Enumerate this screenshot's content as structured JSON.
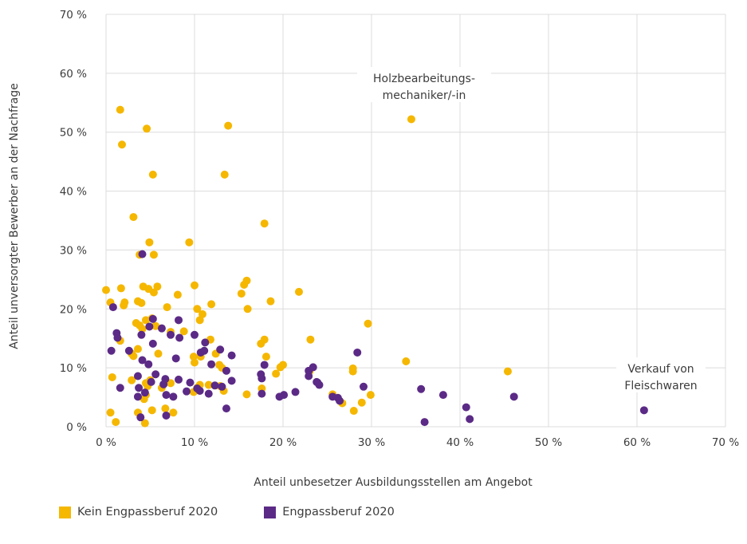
{
  "chart_data": {
    "type": "scatter",
    "xlabel": "Anteil unbesetzer Ausbildungsstellen am Angebot",
    "ylabel": "Anteil unversorgter Bewerber an der Nachfrage",
    "xlim": [
      0,
      70
    ],
    "ylim": [
      0,
      70
    ],
    "x_ticks": [
      "0 %",
      "10 %",
      "20 %",
      "30 %",
      "40 %",
      "50 %",
      "60 %",
      "70 %"
    ],
    "y_ticks": [
      "0 %",
      "10 %",
      "20 %",
      "30 %",
      "40 %",
      "50 %",
      "60 %",
      "70 %"
    ],
    "grid": "vertical and horizontal",
    "legend_position": "bottom-left",
    "series": [
      {
        "name": "Kein Engpassberuf 2020",
        "color": "#F5B700",
        "points": [
          [
            1.6,
            53.8
          ],
          [
            1.8,
            47.9
          ],
          [
            4.6,
            50.6
          ],
          [
            5.3,
            42.8
          ],
          [
            13.8,
            51.1
          ],
          [
            13.4,
            42.8
          ],
          [
            34.5,
            52.2
          ],
          [
            3.1,
            35.6
          ],
          [
            4.9,
            31.3
          ],
          [
            5.4,
            29.2
          ],
          [
            9.4,
            31.3
          ],
          [
            17.9,
            34.5
          ],
          [
            3.8,
            29.2
          ],
          [
            0.0,
            23.2
          ],
          [
            1.7,
            23.5
          ],
          [
            2.1,
            21.1
          ],
          [
            2.0,
            20.6
          ],
          [
            0.5,
            21.1
          ],
          [
            3.6,
            21.3
          ],
          [
            4.0,
            21.0
          ],
          [
            4.2,
            23.8
          ],
          [
            4.8,
            23.4
          ],
          [
            5.4,
            22.8
          ],
          [
            5.8,
            23.8
          ],
          [
            6.9,
            20.3
          ],
          [
            8.1,
            22.4
          ],
          [
            10.0,
            24.0
          ],
          [
            10.3,
            20.0
          ],
          [
            10.9,
            19.1
          ],
          [
            10.6,
            18.1
          ],
          [
            11.9,
            20.8
          ],
          [
            15.3,
            22.6
          ],
          [
            15.6,
            24.1
          ],
          [
            15.9,
            24.8
          ],
          [
            16.0,
            20.0
          ],
          [
            18.6,
            21.3
          ],
          [
            21.8,
            22.9
          ],
          [
            29.6,
            17.5
          ],
          [
            3.4,
            17.6
          ],
          [
            3.8,
            17.2
          ],
          [
            4.1,
            16.6
          ],
          [
            4.5,
            18.1
          ],
          [
            5.6,
            17.1
          ],
          [
            5.2,
            18.4
          ],
          [
            7.3,
            16.1
          ],
          [
            8.8,
            16.2
          ],
          [
            11.8,
            14.8
          ],
          [
            17.9,
            14.8
          ],
          [
            17.5,
            14.1
          ],
          [
            23.1,
            14.8
          ],
          [
            1.6,
            14.6
          ],
          [
            3.6,
            13.2
          ],
          [
            2.9,
            12.4
          ],
          [
            3.1,
            12.0
          ],
          [
            5.9,
            12.4
          ],
          [
            9.9,
            11.9
          ],
          [
            10.0,
            10.9
          ],
          [
            10.7,
            11.9
          ],
          [
            12.8,
            10.5
          ],
          [
            13.1,
            10.0
          ],
          [
            12.4,
            12.4
          ],
          [
            18.1,
            11.9
          ],
          [
            19.2,
            9.0
          ],
          [
            19.7,
            10.1
          ],
          [
            20.0,
            10.5
          ],
          [
            23.0,
            9.4
          ],
          [
            27.9,
            9.9
          ],
          [
            27.9,
            9.4
          ],
          [
            33.9,
            11.1
          ],
          [
            45.4,
            9.4
          ],
          [
            0.7,
            8.4
          ],
          [
            2.9,
            7.9
          ],
          [
            4.5,
            7.4
          ],
          [
            4.7,
            6.9
          ],
          [
            5.0,
            7.9
          ],
          [
            6.3,
            6.6
          ],
          [
            7.3,
            7.4
          ],
          [
            10.3,
            6.6
          ],
          [
            10.6,
            7.1
          ],
          [
            11.6,
            7.1
          ],
          [
            12.9,
            6.9
          ],
          [
            13.3,
            6.1
          ],
          [
            4.5,
            5.4
          ],
          [
            4.3,
            4.7
          ],
          [
            9.9,
            5.9
          ],
          [
            15.9,
            5.5
          ],
          [
            17.6,
            6.5
          ],
          [
            25.6,
            5.5
          ],
          [
            26.7,
            4.0
          ],
          [
            28.9,
            4.1
          ],
          [
            29.9,
            5.4
          ],
          [
            0.5,
            2.4
          ],
          [
            1.1,
            0.8
          ],
          [
            3.6,
            2.4
          ],
          [
            4.4,
            0.6
          ],
          [
            5.2,
            2.8
          ],
          [
            6.7,
            3.1
          ],
          [
            7.6,
            2.4
          ],
          [
            28.0,
            2.7
          ]
        ]
      },
      {
        "name": "Engpassberuf 2020",
        "color": "#5B2A86",
        "points": [
          [
            4.1,
            29.3
          ],
          [
            0.8,
            20.3
          ],
          [
            5.3,
            18.3
          ],
          [
            4.9,
            17.0
          ],
          [
            6.3,
            16.7
          ],
          [
            8.2,
            18.1
          ],
          [
            1.2,
            15.9
          ],
          [
            1.3,
            15.1
          ],
          [
            4.0,
            15.6
          ],
          [
            7.3,
            15.6
          ],
          [
            8.3,
            15.1
          ],
          [
            10.0,
            15.6
          ],
          [
            11.2,
            14.3
          ],
          [
            5.3,
            14.1
          ],
          [
            0.6,
            12.9
          ],
          [
            2.6,
            12.9
          ],
          [
            4.1,
            11.3
          ],
          [
            4.8,
            10.6
          ],
          [
            7.9,
            11.6
          ],
          [
            10.7,
            12.6
          ],
          [
            11.1,
            12.9
          ],
          [
            11.9,
            10.6
          ],
          [
            12.9,
            13.1
          ],
          [
            14.2,
            12.1
          ],
          [
            13.6,
            9.5
          ],
          [
            17.5,
            8.9
          ],
          [
            17.6,
            8.2
          ],
          [
            17.9,
            10.5
          ],
          [
            22.9,
            9.5
          ],
          [
            23.4,
            10.1
          ],
          [
            22.9,
            8.6
          ],
          [
            23.9,
            7.5
          ],
          [
            28.4,
            12.6
          ],
          [
            3.6,
            8.6
          ],
          [
            5.6,
            8.9
          ],
          [
            6.7,
            8.1
          ],
          [
            8.2,
            8.0
          ],
          [
            9.5,
            7.5
          ],
          [
            10.3,
            6.5
          ],
          [
            12.3,
            7.0
          ],
          [
            13.1,
            6.8
          ],
          [
            14.2,
            7.8
          ],
          [
            3.7,
            6.6
          ],
          [
            1.6,
            6.6
          ],
          [
            5.1,
            7.6
          ],
          [
            6.5,
            7.2
          ],
          [
            3.6,
            5.1
          ],
          [
            4.4,
            5.8
          ],
          [
            6.8,
            5.4
          ],
          [
            7.6,
            5.1
          ],
          [
            9.1,
            6.0
          ],
          [
            10.6,
            6.1
          ],
          [
            11.6,
            5.6
          ],
          [
            17.6,
            5.6
          ],
          [
            19.6,
            5.1
          ],
          [
            20.1,
            5.4
          ],
          [
            21.4,
            5.9
          ],
          [
            23.8,
            7.6
          ],
          [
            24.1,
            7.1
          ],
          [
            25.6,
            5.1
          ],
          [
            26.2,
            4.9
          ],
          [
            26.4,
            4.4
          ],
          [
            29.1,
            6.8
          ],
          [
            35.6,
            6.4
          ],
          [
            38.1,
            5.4
          ],
          [
            46.1,
            5.1
          ],
          [
            3.9,
            1.6
          ],
          [
            6.8,
            1.9
          ],
          [
            13.6,
            3.1
          ],
          [
            36.0,
            0.8
          ],
          [
            40.7,
            3.3
          ],
          [
            41.1,
            1.3
          ],
          [
            60.8,
            2.8
          ]
        ]
      }
    ],
    "annotations": [
      {
        "text": [
          "Holzbearbeitungs-",
          "mechaniker/-in"
        ],
        "x": 34.5,
        "y": 52.2
      },
      {
        "text": [
          "Verkauf von",
          "Fleischwaren"
        ],
        "x": 60.8,
        "y": 2.8
      }
    ]
  },
  "legend": {
    "items": [
      {
        "label": "Kein Engpassberuf 2020",
        "color": "#F5B700"
      },
      {
        "label": "Engpassberuf 2020",
        "color": "#5B2A86"
      }
    ]
  }
}
